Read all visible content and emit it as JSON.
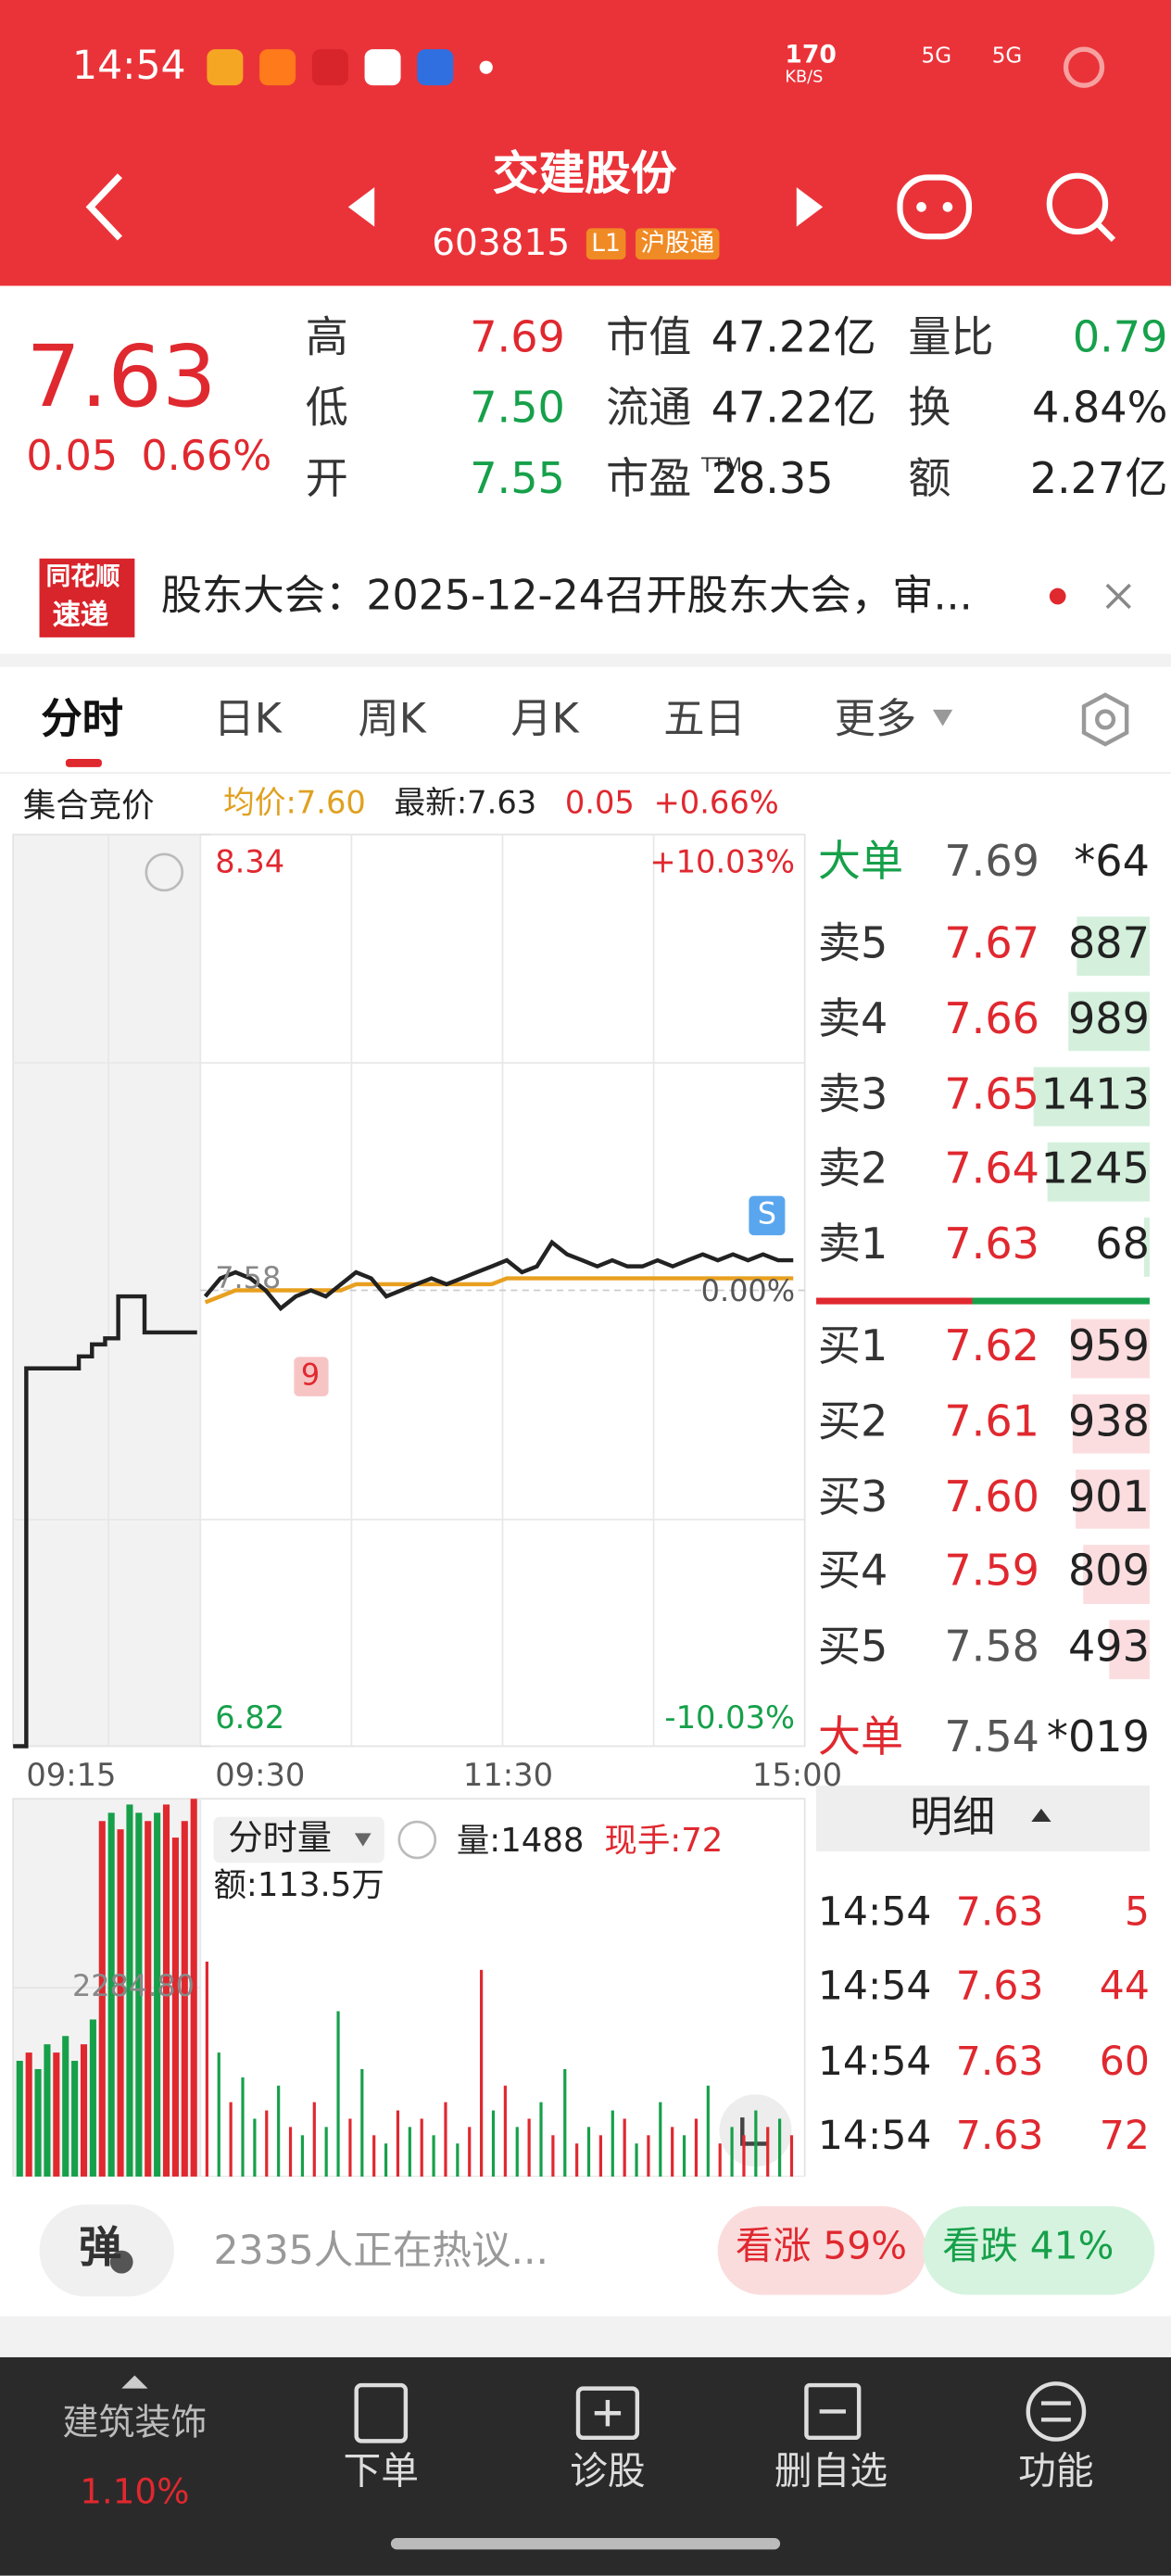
{
  "status_bar": {
    "time": "14:54",
    "speed": "170",
    "speed_unit": "KB/S",
    "net1": "5G",
    "net2": "5G"
  },
  "header": {
    "name": "交建股份",
    "code": "603815",
    "level": "L1",
    "tag": "沪股通"
  },
  "quote": {
    "price": "7.63",
    "change": "0.05",
    "change_pct": "0.66%",
    "stats": [
      {
        "label": "高",
        "value": "7.69",
        "color": "#e0282f"
      },
      {
        "label": "市值",
        "value": "47.22亿",
        "color": "#222222"
      },
      {
        "label": "量比",
        "value": "0.79",
        "color": "#16a04a"
      },
      {
        "label": "低",
        "value": "7.50",
        "color": "#16a04a"
      },
      {
        "label": "流通",
        "value": "47.22亿",
        "color": "#222222"
      },
      {
        "label": "换",
        "value": "4.84%",
        "color": "#222222"
      },
      {
        "label": "开",
        "value": "7.55",
        "color": "#16a04a"
      },
      {
        "label": "市盈",
        "sup": "TTM",
        "value": "28.35",
        "color": "#222222"
      },
      {
        "label": "额",
        "value": "2.27亿",
        "color": "#222222"
      }
    ]
  },
  "news": {
    "logo_top": "同花顺",
    "logo_bottom": "速递",
    "text": "股东大会：2025-12-24召开股东大会，审..."
  },
  "tabs": [
    "分时",
    "日K",
    "周K",
    "月K",
    "五日",
    "更多"
  ],
  "summary": {
    "auction": "集合竞价",
    "avg": "均价:7.60",
    "latest": "最新:7.63",
    "change": "0.05",
    "pct": "+0.66%"
  },
  "intraday": {
    "ylim": [
      6.82,
      8.34
    ],
    "yticks": [
      8.34,
      6.82
    ],
    "pct_labels": [
      "+10.03%",
      "-10.03%"
    ],
    "base": 7.58,
    "base_pct": "0.00%",
    "times": [
      "09:15",
      "09:30",
      "11:30",
      "15:00"
    ],
    "marker_s": "S",
    "marker_9": "9",
    "auction": {
      "color": "#222222",
      "values": [
        6.82,
        7.45,
        7.45,
        7.45,
        7.45,
        7.47,
        7.49,
        7.5,
        7.57,
        7.57,
        7.51,
        7.51,
        7.51,
        7.51,
        7.51
      ]
    },
    "price": {
      "color": "#222222",
      "values": [
        7.57,
        7.6,
        7.61,
        7.6,
        7.58,
        7.55,
        7.57,
        7.58,
        7.57,
        7.59,
        7.61,
        7.6,
        7.57,
        7.58,
        7.59,
        7.6,
        7.59,
        7.6,
        7.61,
        7.62,
        7.63,
        7.61,
        7.62,
        7.66,
        7.64,
        7.63,
        7.62,
        7.63,
        7.62,
        7.62,
        7.63,
        7.62,
        7.63,
        7.64,
        7.63,
        7.64,
        7.63,
        7.64,
        7.63,
        7.63
      ]
    },
    "avg": {
      "color": "#e8a020",
      "values": [
        7.56,
        7.57,
        7.58,
        7.58,
        7.58,
        7.58,
        7.58,
        7.58,
        7.58,
        7.58,
        7.59,
        7.59,
        7.59,
        7.59,
        7.59,
        7.59,
        7.59,
        7.59,
        7.59,
        7.59,
        7.6,
        7.6,
        7.6,
        7.6,
        7.6,
        7.6,
        7.6,
        7.6,
        7.6,
        7.6,
        7.6,
        7.6,
        7.6,
        7.6,
        7.6,
        7.6,
        7.6,
        7.6,
        7.6,
        7.6
      ]
    }
  },
  "volume": {
    "ylim": [
      0,
      4569.6
    ],
    "yticks": [
      {
        "value": 2284.8,
        "label": "2284.80"
      }
    ],
    "mode": "分时量",
    "qty": "量:1488",
    "hand": "现手:72",
    "amount": "额:113.5万",
    "auction": {
      "values": [
        1400,
        1500,
        1300,
        1600,
        1500,
        1700,
        1400,
        1600,
        1900,
        4300,
        4400,
        4200,
        4500,
        4400,
        4300,
        4400,
        4500,
        4100,
        4300,
        4569
      ],
      "colors": [
        "#16a04a",
        "#e0282f",
        "#16a04a",
        "#16a04a",
        "#e0282f",
        "#16a04a",
        "#16a04a",
        "#e0282f",
        "#16a04a",
        "#e0282f",
        "#16a04a",
        "#e0282f",
        "#16a04a",
        "#16a04a",
        "#e0282f",
        "#16a04a",
        "#e0282f",
        "#e0282f",
        "#e0282f",
        "#e0282f"
      ]
    },
    "bars": {
      "values": [
        2600,
        1500,
        900,
        1200,
        700,
        800,
        1100,
        600,
        500,
        900,
        600,
        2000,
        700,
        1300,
        500,
        400,
        800,
        600,
        700,
        500,
        900,
        400,
        600,
        2500,
        800,
        1100,
        600,
        700,
        900,
        500,
        1300,
        400,
        600,
        500,
        800,
        700,
        400,
        500,
        900,
        600,
        500,
        700,
        1100,
        400,
        600,
        500,
        800,
        600,
        700,
        500
      ],
      "colors": [
        "#e0282f",
        "#16a04a",
        "#e0282f",
        "#16a04a",
        "#16a04a",
        "#e0282f",
        "#16a04a",
        "#e0282f",
        "#16a04a",
        "#e0282f",
        "#16a04a",
        "#16a04a",
        "#e0282f",
        "#16a04a",
        "#e0282f",
        "#16a04a",
        "#e0282f",
        "#16a04a",
        "#e0282f",
        "#16a04a",
        "#e0282f",
        "#16a04a",
        "#e0282f",
        "#e0282f",
        "#16a04a",
        "#e0282f",
        "#16a04a",
        "#e0282f",
        "#16a04a",
        "#e0282f",
        "#16a04a",
        "#e0282f",
        "#16a04a",
        "#e0282f",
        "#16a04a",
        "#e0282f",
        "#16a04a",
        "#e0282f",
        "#16a04a",
        "#e0282f",
        "#16a04a",
        "#e0282f",
        "#16a04a",
        "#e0282f",
        "#16a04a",
        "#e0282f",
        "#16a04a",
        "#e0282f",
        "#16a04a",
        "#e0282f"
      ]
    }
  },
  "order_book": {
    "big_sell": {
      "label": "大单",
      "price": "7.69",
      "qty": "*64"
    },
    "sells": [
      {
        "label": "卖5",
        "price": "7.67",
        "volume": 887
      },
      {
        "label": "卖4",
        "price": "7.66",
        "volume": 989
      },
      {
        "label": "卖3",
        "price": "7.65",
        "volume": 1413
      },
      {
        "label": "卖2",
        "price": "7.64",
        "volume": 1245
      },
      {
        "label": "卖1",
        "price": "7.63",
        "volume": 68
      }
    ],
    "buys": [
      {
        "label": "买1",
        "price": "7.62",
        "volume": 959
      },
      {
        "label": "买2",
        "price": "7.61",
        "volume": 938
      },
      {
        "label": "买3",
        "price": "7.60",
        "volume": 901
      },
      {
        "label": "买4",
        "price": "7.59",
        "volume": 809
      },
      {
        "label": "买5",
        "price": "7.58",
        "volume": 493
      }
    ],
    "big_buy": {
      "label": "大单",
      "price": "7.54",
      "qty": "*019"
    },
    "detail": "明细",
    "trades": [
      [
        "14:54",
        "7.63",
        "5"
      ],
      [
        "14:54",
        "7.63",
        "44"
      ],
      [
        "14:54",
        "7.63",
        "60"
      ],
      [
        "14:54",
        "7.63",
        "72"
      ]
    ]
  },
  "comment": {
    "icon": "弹",
    "text": "2335人正在热议...",
    "bull": "看涨 59%",
    "bear": "看跌 41%"
  },
  "nav": {
    "sector": "建筑装饰",
    "sector_change": "1.10%",
    "items": [
      "下单",
      "诊股",
      "删自选",
      "功能"
    ]
  }
}
